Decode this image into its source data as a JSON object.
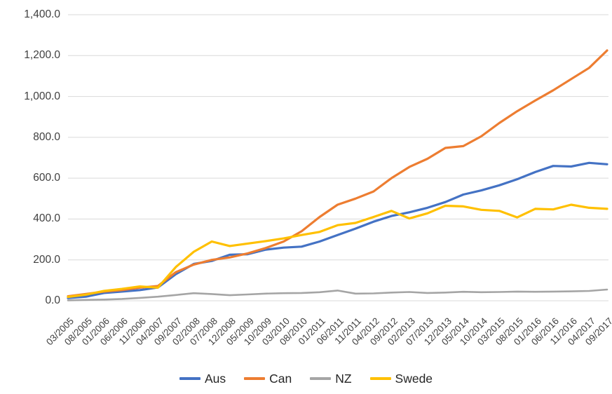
{
  "chart_data": {
    "type": "line",
    "title": "",
    "xlabel": "",
    "ylabel": "",
    "ylim": [
      0,
      1400
    ],
    "y_tick_step": 200,
    "y_ticks": [
      "0.0",
      "200.0",
      "400.0",
      "600.0",
      "800.0",
      "1,000.0",
      "1,200.0",
      "1,400.0"
    ],
    "grid": "horizontal",
    "legend_position": "bottom",
    "x_labels": [
      "03/2005",
      "08/2005",
      "01/2006",
      "06/2006",
      "11/2006",
      "04/2007",
      "09/2007",
      "02/2008",
      "07/2008",
      "12/2008",
      "05/2009",
      "10/2009",
      "03/2010",
      "08/2010",
      "01/2011",
      "06/2011",
      "11/2011",
      "04/2012",
      "09/2012",
      "02/2013",
      "07/2013",
      "12/2013",
      "05/2014",
      "10/2014",
      "03/2015",
      "08/2015",
      "01/2016",
      "06/2016",
      "11/2016",
      "04/2017",
      "09/2017"
    ],
    "series": [
      {
        "name": "Aus",
        "color": "#4472C4",
        "values": [
          13,
          20,
          38,
          45,
          52,
          65,
          130,
          180,
          195,
          225,
          228,
          250,
          260,
          265,
          290,
          322,
          353,
          387,
          415,
          433,
          455,
          483,
          520,
          540,
          565,
          595,
          630,
          660,
          657,
          675,
          668
        ]
      },
      {
        "name": "Can",
        "color": "#ED7D31",
        "values": [
          22,
          33,
          45,
          52,
          64,
          72,
          140,
          177,
          200,
          212,
          232,
          258,
          290,
          340,
          410,
          470,
          500,
          535,
          600,
          655,
          695,
          748,
          757,
          805,
          870,
          928,
          980,
          1030,
          1085,
          1140,
          1225
        ]
      },
      {
        "name": "NZ",
        "color": "#A5A5A5",
        "values": [
          2,
          4,
          6,
          9,
          14,
          20,
          28,
          37,
          33,
          27,
          31,
          35,
          37,
          38,
          42,
          50,
          35,
          36,
          40,
          43,
          38,
          40,
          44,
          42,
          43,
          45,
          44,
          45,
          46,
          48,
          55
        ]
      },
      {
        "name": "Swede",
        "color": "#FFC000",
        "values": [
          19,
          30,
          48,
          58,
          70,
          64,
          165,
          240,
          290,
          268,
          280,
          292,
          305,
          322,
          337,
          370,
          381,
          410,
          440,
          403,
          428,
          465,
          462,
          445,
          440,
          408,
          450,
          447,
          470,
          455,
          450
        ]
      }
    ]
  },
  "colors": {
    "gridline": "#D9D9D9",
    "axis_text": "#404040",
    "legend_text": "#262626",
    "background": "#FFFFFF"
  }
}
